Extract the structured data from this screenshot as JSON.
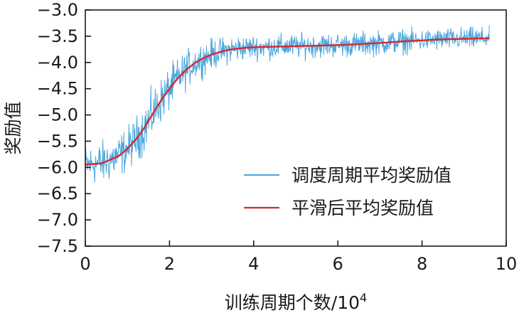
{
  "chart_data": {
    "type": "line",
    "title": "",
    "xlabel": "训练周期个数/10",
    "xlabel_superscript": "4",
    "ylabel": "奖励值",
    "xlim": [
      0,
      10
    ],
    "ylim": [
      -7.5,
      -3.0
    ],
    "xticks": [
      0,
      2,
      4,
      6,
      8,
      10
    ],
    "xtick_labels": [
      "0",
      "2",
      "4",
      "6",
      "8",
      "10"
    ],
    "yticks": [
      -3.0,
      -3.5,
      -4.0,
      -4.5,
      -5.0,
      -5.5,
      -6.0,
      -6.5,
      -7.0,
      -7.5
    ],
    "ytick_labels": [
      "−3.0",
      "−3.5",
      "−4.0",
      "−4.5",
      "−5.0",
      "−5.5",
      "−6.0",
      "−6.5",
      "−7.0",
      "−7.5"
    ],
    "grid": false,
    "legend_position": "lower-right",
    "series": [
      {
        "name": "调度周期平均奖励值",
        "color": "#4ba6dd",
        "style": "noisy-line",
        "x": [
          0.0,
          0.4,
          0.8,
          1.0,
          1.2,
          1.4,
          1.6,
          1.8,
          2.0,
          2.2,
          2.4,
          2.6,
          2.8,
          3.0,
          3.2,
          3.4,
          3.6,
          3.8,
          4.0,
          4.5,
          5.0,
          5.5,
          6.0,
          6.5,
          7.0,
          7.5,
          8.0,
          8.5,
          9.0,
          9.5,
          9.6
        ],
        "y": [
          -5.95,
          -5.92,
          -5.78,
          -5.64,
          -5.47,
          -5.25,
          -4.98,
          -4.72,
          -4.5,
          -4.3,
          -4.14,
          -4.01,
          -3.92,
          -3.85,
          -3.8,
          -3.76,
          -3.74,
          -3.72,
          -3.71,
          -3.7,
          -3.69,
          -3.68,
          -3.67,
          -3.65,
          -3.63,
          -3.6,
          -3.58,
          -3.56,
          -3.55,
          -3.54,
          -3.54
        ],
        "noise_amplitude": [
          0.35,
          0.4,
          0.4,
          0.4,
          0.4,
          0.45,
          0.45,
          0.4,
          0.4,
          0.35,
          0.35,
          0.3,
          0.3,
          0.28,
          0.25,
          0.25,
          0.25,
          0.22,
          0.22,
          0.22,
          0.22,
          0.22,
          0.22,
          0.22,
          0.22,
          0.22,
          0.2,
          0.2,
          0.2,
          0.2,
          0.2
        ]
      },
      {
        "name": "平滑后平均奖励值",
        "color": "#d4292f",
        "style": "line",
        "x": [
          0.0,
          0.4,
          0.8,
          1.0,
          1.2,
          1.4,
          1.6,
          1.8,
          2.0,
          2.2,
          2.4,
          2.6,
          2.8,
          3.0,
          3.2,
          3.4,
          3.6,
          3.8,
          4.0,
          4.5,
          5.0,
          5.5,
          6.0,
          6.5,
          7.0,
          7.5,
          8.0,
          8.5,
          9.0,
          9.5,
          9.6
        ],
        "y": [
          -5.95,
          -5.92,
          -5.78,
          -5.64,
          -5.47,
          -5.25,
          -4.98,
          -4.72,
          -4.5,
          -4.3,
          -4.14,
          -4.01,
          -3.92,
          -3.85,
          -3.8,
          -3.76,
          -3.74,
          -3.72,
          -3.71,
          -3.7,
          -3.69,
          -3.68,
          -3.67,
          -3.65,
          -3.63,
          -3.6,
          -3.58,
          -3.56,
          -3.55,
          -3.54,
          -3.54
        ]
      }
    ]
  }
}
